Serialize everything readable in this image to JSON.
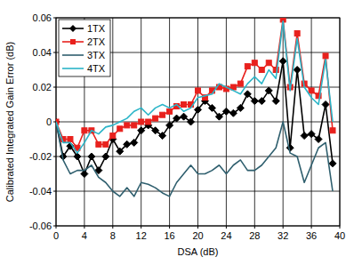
{
  "chart_data": {
    "type": "line",
    "x_label": "DSA (dB)",
    "y_label": "Calibrated Integrated Gain Error (dB)",
    "x": [
      0,
      1,
      2,
      3,
      4,
      5,
      6,
      7,
      8,
      9,
      10,
      11,
      12,
      13,
      14,
      15,
      16,
      17,
      18,
      19,
      20,
      21,
      22,
      23,
      24,
      25,
      26,
      27,
      28,
      29,
      30,
      31,
      32,
      33,
      34,
      35,
      36,
      37,
      38,
      39
    ],
    "series": [
      {
        "name": "1TX",
        "color": "#000000",
        "marker": "diamond",
        "values": [
          0,
          -0.02,
          -0.014,
          -0.02,
          -0.03,
          -0.02,
          -0.028,
          -0.02,
          -0.01,
          -0.017,
          -0.013,
          -0.012,
          -0.005,
          -0.002,
          -0.005,
          -0.008,
          -0.002,
          0.002,
          0.003,
          0.0,
          0.007,
          0.012,
          0.008,
          0.003,
          0.006,
          0.005,
          0.008,
          0.016,
          0.012,
          0.012,
          0.018,
          0.012,
          0.035,
          -0.015,
          0.03,
          -0.008,
          -0.007,
          -0.01,
          0.01,
          -0.024
        ]
      },
      {
        "name": "2TX",
        "color": "#e8211d",
        "marker": "square",
        "values": [
          0,
          -0.01,
          -0.01,
          -0.015,
          -0.005,
          -0.005,
          -0.013,
          -0.013,
          -0.008,
          -0.004,
          -0.002,
          -0.002,
          0.0,
          0.0,
          0.002,
          0.004,
          0.006,
          0.009,
          0.01,
          0.01,
          0.018,
          0.014,
          0.018,
          0.02,
          0.019,
          0.02,
          0.022,
          0.032,
          0.034,
          0.03,
          0.034,
          0.03,
          0.059,
          0.02,
          0.051,
          0.022,
          0.018,
          0.015,
          0.038,
          -0.005
        ]
      },
      {
        "name": "3TX",
        "color": "#2f5f6e",
        "marker": "none",
        "values": [
          0,
          -0.022,
          -0.03,
          -0.028,
          -0.028,
          -0.025,
          -0.032,
          -0.035,
          -0.04,
          -0.043,
          -0.038,
          -0.043,
          -0.035,
          -0.036,
          -0.038,
          -0.041,
          -0.043,
          -0.035,
          -0.03,
          -0.025,
          -0.03,
          -0.03,
          -0.028,
          -0.025,
          -0.03,
          -0.025,
          -0.022,
          -0.028,
          -0.028,
          -0.025,
          -0.02,
          -0.015,
          0.0,
          -0.018,
          -0.02,
          -0.035,
          -0.025,
          -0.015,
          -0.012,
          -0.04
        ]
      },
      {
        "name": "4TX",
        "color": "#2bb5c8",
        "marker": "none",
        "values": [
          0,
          -0.012,
          -0.012,
          -0.018,
          -0.012,
          -0.005,
          -0.007,
          -0.003,
          -0.002,
          0.0,
          0.002,
          0.006,
          0.008,
          0.004,
          0.008,
          0.01,
          0.008,
          0.01,
          0.006,
          0.008,
          0.014,
          0.015,
          0.016,
          0.022,
          0.02,
          0.018,
          0.016,
          0.022,
          0.026,
          0.022,
          0.03,
          0.025,
          0.058,
          0.018,
          0.048,
          0.02,
          0.014,
          0.01,
          0.036,
          0.0
        ]
      }
    ],
    "xlim": [
      0,
      40
    ],
    "xticks": [
      0,
      4,
      8,
      12,
      16,
      20,
      24,
      28,
      32,
      36,
      40
    ],
    "ylim": [
      -0.06,
      0.06
    ],
    "yticks": [
      -0.06,
      -0.04,
      -0.02,
      0,
      0.02,
      0.04,
      0.06
    ],
    "grid": true,
    "legend": "upper-left"
  }
}
